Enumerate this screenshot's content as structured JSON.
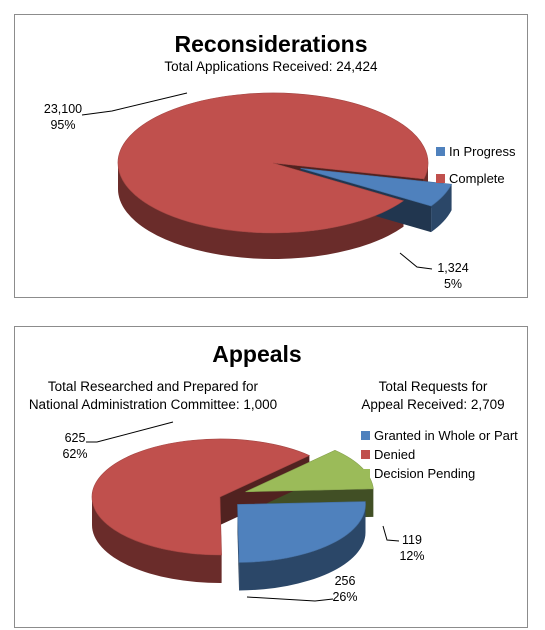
{
  "chart_data": [
    {
      "type": "pie",
      "title": "Reconsiderations",
      "subtitle": "Total Applications Received: 24,424",
      "categories": [
        "In Progress",
        "Complete"
      ],
      "values": [
        1324,
        23100
      ],
      "percent_labels": [
        "5%",
        "95%"
      ],
      "value_labels": [
        "1,324",
        "23,100"
      ],
      "colors": [
        "#4f81bd",
        "#c0504d"
      ],
      "legend_position": "right",
      "style": "3d-exploded"
    },
    {
      "type": "pie",
      "title": "Appeals",
      "subtitle_left": [
        "Total Researched and Prepared for",
        "National  Administration Committee: 1,000"
      ],
      "subtitle_right": [
        "Total Requests for",
        "Appeal Received: 2,709"
      ],
      "categories": [
        "Granted in Whole or Part",
        "Denied",
        "Decision Pending"
      ],
      "values": [
        256,
        625,
        119
      ],
      "percent_labels": [
        "26%",
        "62%",
        "12%"
      ],
      "value_labels": [
        "256",
        "625",
        "119"
      ],
      "colors": [
        "#4f81bd",
        "#c0504d",
        "#9bbb59"
      ],
      "legend_position": "right",
      "style": "3d-exploded"
    }
  ]
}
